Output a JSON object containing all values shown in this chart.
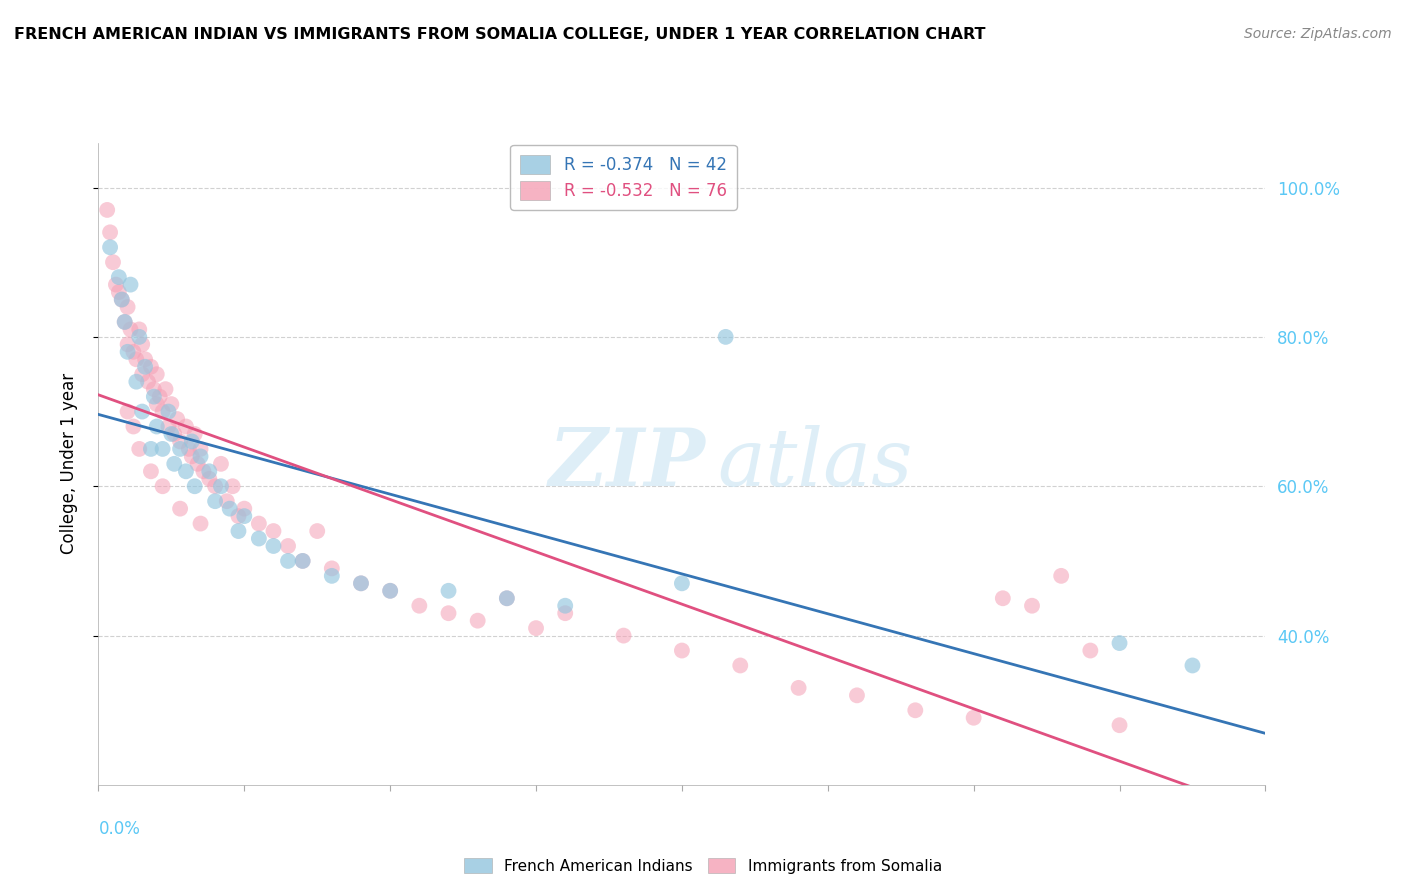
{
  "title": "FRENCH AMERICAN INDIAN VS IMMIGRANTS FROM SOMALIA COLLEGE, UNDER 1 YEAR CORRELATION CHART",
  "source": "Source: ZipAtlas.com",
  "ylabel": "College, Under 1 year",
  "legend_blue_label": "R = -0.374   N = 42",
  "legend_pink_label": "R = -0.532   N = 76",
  "blue_color": "#92c5de",
  "pink_color": "#f4a0b5",
  "blue_line_color": "#3575b5",
  "pink_line_color": "#e05080",
  "right_axis_color": "#5bc8f5",
  "xlim": [
    0.0,
    0.4
  ],
  "ylim": [
    0.2,
    1.06
  ],
  "yticks": [
    1.0,
    0.8,
    0.6,
    0.4
  ],
  "blue_scatter_x": [
    0.004,
    0.007,
    0.008,
    0.009,
    0.01,
    0.011,
    0.013,
    0.014,
    0.015,
    0.016,
    0.018,
    0.019,
    0.02,
    0.022,
    0.024,
    0.025,
    0.026,
    0.028,
    0.03,
    0.032,
    0.033,
    0.035,
    0.038,
    0.04,
    0.042,
    0.045,
    0.048,
    0.05,
    0.055,
    0.06,
    0.065,
    0.07,
    0.08,
    0.09,
    0.1,
    0.12,
    0.14,
    0.16,
    0.2,
    0.215,
    0.35,
    0.375
  ],
  "blue_scatter_y": [
    0.92,
    0.88,
    0.85,
    0.82,
    0.78,
    0.87,
    0.74,
    0.8,
    0.7,
    0.76,
    0.65,
    0.72,
    0.68,
    0.65,
    0.7,
    0.67,
    0.63,
    0.65,
    0.62,
    0.66,
    0.6,
    0.64,
    0.62,
    0.58,
    0.6,
    0.57,
    0.54,
    0.56,
    0.53,
    0.52,
    0.5,
    0.5,
    0.48,
    0.47,
    0.46,
    0.46,
    0.45,
    0.44,
    0.47,
    0.8,
    0.39,
    0.36
  ],
  "pink_scatter_x": [
    0.003,
    0.004,
    0.005,
    0.006,
    0.007,
    0.008,
    0.009,
    0.01,
    0.01,
    0.011,
    0.012,
    0.013,
    0.014,
    0.015,
    0.015,
    0.016,
    0.017,
    0.018,
    0.019,
    0.02,
    0.02,
    0.021,
    0.022,
    0.023,
    0.024,
    0.025,
    0.026,
    0.027,
    0.028,
    0.03,
    0.031,
    0.032,
    0.033,
    0.034,
    0.035,
    0.036,
    0.038,
    0.04,
    0.042,
    0.044,
    0.046,
    0.048,
    0.05,
    0.055,
    0.06,
    0.065,
    0.07,
    0.075,
    0.08,
    0.09,
    0.1,
    0.11,
    0.12,
    0.13,
    0.14,
    0.15,
    0.16,
    0.18,
    0.2,
    0.22,
    0.24,
    0.26,
    0.28,
    0.3,
    0.31,
    0.32,
    0.33,
    0.34,
    0.35,
    0.01,
    0.012,
    0.014,
    0.018,
    0.022,
    0.028,
    0.035
  ],
  "pink_scatter_y": [
    0.97,
    0.94,
    0.9,
    0.87,
    0.86,
    0.85,
    0.82,
    0.84,
    0.79,
    0.81,
    0.78,
    0.77,
    0.81,
    0.79,
    0.75,
    0.77,
    0.74,
    0.76,
    0.73,
    0.75,
    0.71,
    0.72,
    0.7,
    0.73,
    0.68,
    0.71,
    0.67,
    0.69,
    0.66,
    0.68,
    0.65,
    0.64,
    0.67,
    0.63,
    0.65,
    0.62,
    0.61,
    0.6,
    0.63,
    0.58,
    0.6,
    0.56,
    0.57,
    0.55,
    0.54,
    0.52,
    0.5,
    0.54,
    0.49,
    0.47,
    0.46,
    0.44,
    0.43,
    0.42,
    0.45,
    0.41,
    0.43,
    0.4,
    0.38,
    0.36,
    0.33,
    0.32,
    0.3,
    0.29,
    0.45,
    0.44,
    0.48,
    0.38,
    0.28,
    0.7,
    0.68,
    0.65,
    0.62,
    0.6,
    0.57,
    0.55
  ]
}
